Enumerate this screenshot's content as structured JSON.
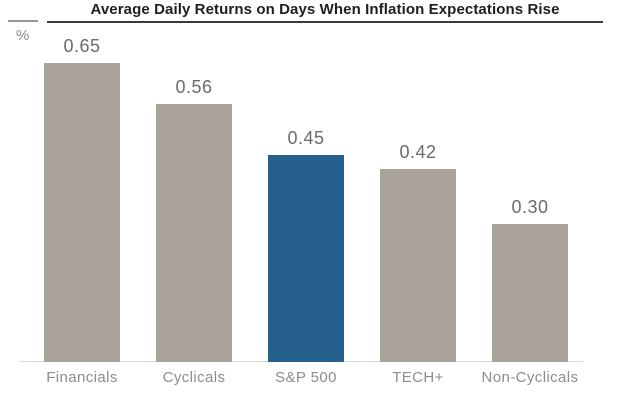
{
  "chart": {
    "title": "Average Daily Returns on Days When Inflation Expectations Rise",
    "unit_label": "%"
  },
  "chart_data": {
    "type": "bar",
    "title": "Average Daily Returns on Days When Inflation Expectations Rise",
    "categories": [
      "Financials",
      "Cyclicals",
      "S&P 500",
      "TECH+",
      "Non-Cyclicals"
    ],
    "values": [
      0.65,
      0.56,
      0.45,
      0.42,
      0.3
    ],
    "value_labels": [
      "0.65",
      "0.56",
      "0.45",
      "0.42",
      "0.30"
    ],
    "xlabel": "",
    "ylabel": "%",
    "ylim": [
      0,
      0.75
    ],
    "grid": false,
    "legend": false,
    "y_axis_ticks_visible": false,
    "highlight_category": "S&P 500",
    "bar_colors": [
      "#a9a39c",
      "#a9a39c",
      "#26608c",
      "#a9a39c",
      "#a9a39c"
    ],
    "colors": {
      "bar_default": "#a9a39c",
      "bar_highlight": "#26608c",
      "value_label": "#6b6b6b",
      "axis_label": "#8c8c8c",
      "axis_line": "#d9d9d9",
      "title_text": "#1f1f1f",
      "title_rule": "#3a3a3a",
      "unit_rule": "#969696"
    }
  }
}
